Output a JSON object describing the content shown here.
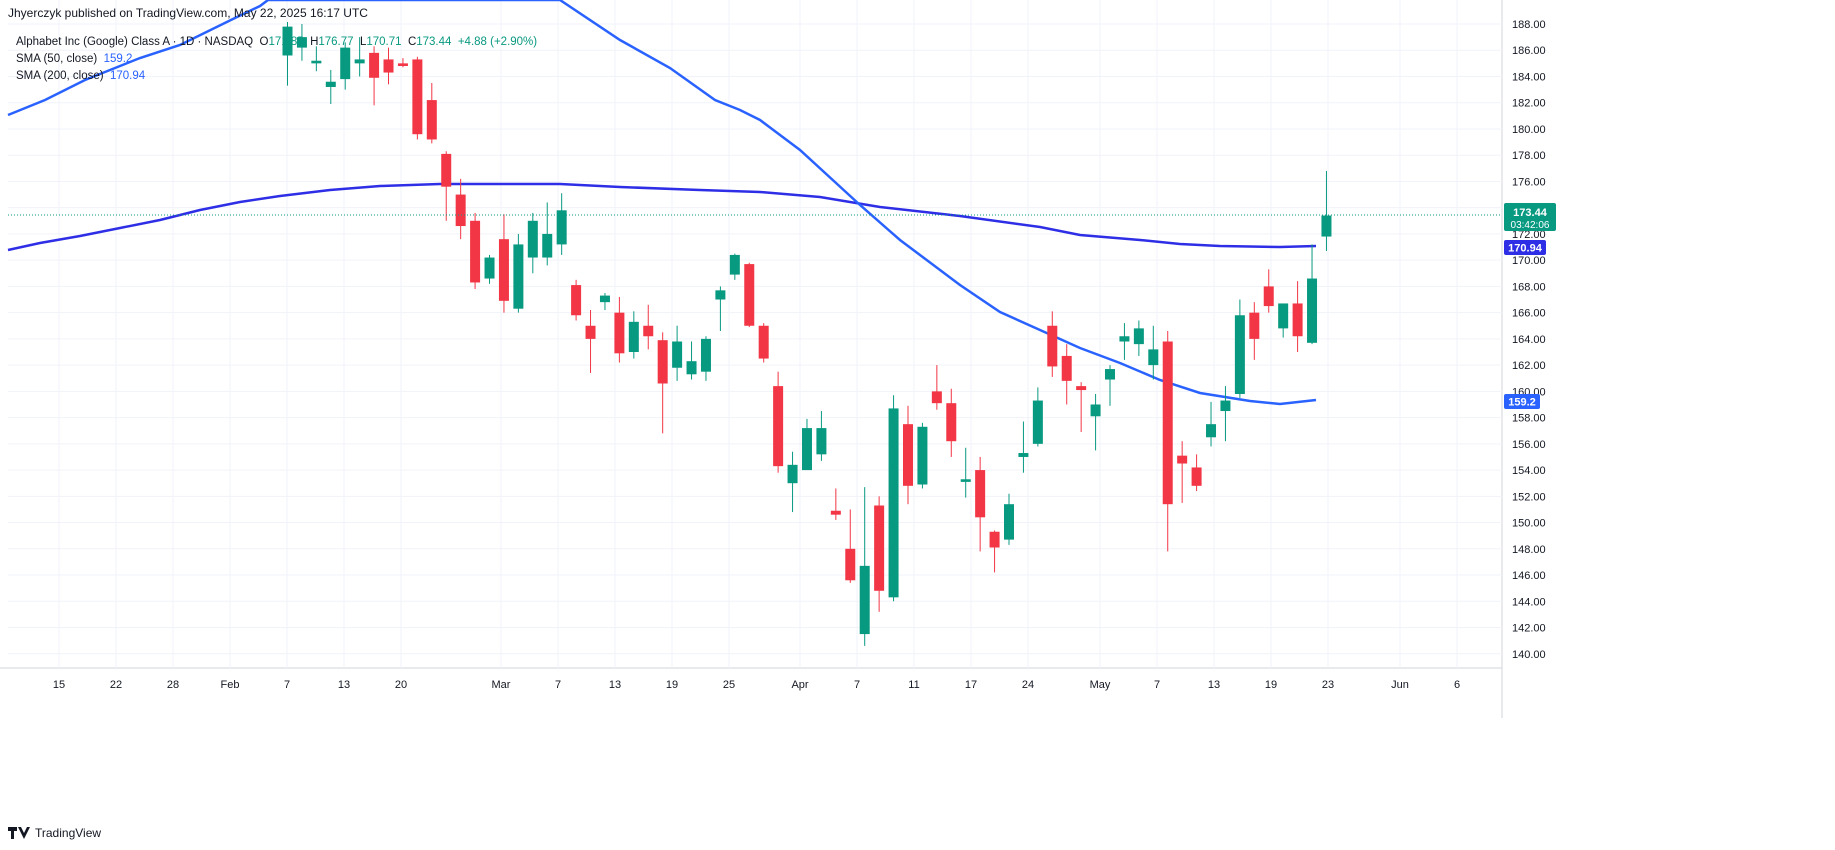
{
  "header": {
    "published": "Jhyerczyk published on TradingView.com, May 22, 2025 16:17 UTC"
  },
  "legend": {
    "symbol": "Alphabet Inc (Google) Class A · 1D · NASDAQ",
    "o_label": "O",
    "o_value": "171.85",
    "h_label": "H",
    "h_value": "176.77",
    "l_label": "L",
    "l_value": "170.71",
    "c_label": "C",
    "c_value": "173.44",
    "change": "+4.88 (+2.90%)",
    "sma50_label": "SMA (50, close)",
    "sma50_value": "159.2",
    "sma200_label": "SMA (200, close)",
    "sma200_value": "170.94"
  },
  "price_badge": {
    "price": "173.44",
    "countdown": "03:42:06"
  },
  "footer": {
    "brand": "TradingView"
  },
  "colors": {
    "up": "#089981",
    "down": "#f23645",
    "sma50": "#2962ff",
    "sma200": "#2e2ee6",
    "last_price_line": "#089981"
  },
  "chart_data": {
    "type": "candlestick",
    "y_axis": {
      "min": 140,
      "max": 188,
      "ticks": [
        140,
        142,
        144,
        146,
        148,
        150,
        152,
        154,
        156,
        158,
        160,
        162,
        164,
        166,
        168,
        170,
        172,
        174,
        176,
        178,
        180,
        182,
        184,
        186,
        188
      ],
      "side": "right"
    },
    "x_ticks": [
      "15",
      "22",
      "28",
      "Feb",
      "7",
      "13",
      "20",
      "Mar",
      "7",
      "13",
      "19",
      "25",
      "Apr",
      "7",
      "11",
      "17",
      "24",
      "May",
      "7",
      "13",
      "19",
      "23",
      "Jun",
      "6"
    ],
    "candles": [
      {
        "o": 185.6,
        "h": 188.2,
        "l": 183.3,
        "c": 187.8
      },
      {
        "o": 186.2,
        "h": 188.0,
        "l": 185.2,
        "c": 187.0
      },
      {
        "o": 185.0,
        "h": 186.3,
        "l": 184.4,
        "c": 185.2
      },
      {
        "o": 183.2,
        "h": 184.5,
        "l": 181.9,
        "c": 183.6
      },
      {
        "o": 183.8,
        "h": 186.6,
        "l": 183.0,
        "c": 186.2
      },
      {
        "o": 185.0,
        "h": 187.0,
        "l": 184.0,
        "c": 185.3
      },
      {
        "o": 185.8,
        "h": 186.3,
        "l": 181.8,
        "c": 183.9
      },
      {
        "o": 185.3,
        "h": 186.2,
        "l": 183.4,
        "c": 184.3
      },
      {
        "o": 185.0,
        "h": 185.4,
        "l": 184.7,
        "c": 184.8
      },
      {
        "o": 185.3,
        "h": 185.5,
        "l": 179.2,
        "c": 179.6
      },
      {
        "o": 182.2,
        "h": 183.5,
        "l": 178.9,
        "c": 179.2
      },
      {
        "o": 178.1,
        "h": 178.3,
        "l": 173.0,
        "c": 175.6
      },
      {
        "o": 175.0,
        "h": 176.2,
        "l": 171.6,
        "c": 172.6
      },
      {
        "o": 173.0,
        "h": 173.6,
        "l": 167.8,
        "c": 168.3
      },
      {
        "o": 168.6,
        "h": 170.4,
        "l": 168.2,
        "c": 170.2
      },
      {
        "o": 171.6,
        "h": 173.5,
        "l": 166.0,
        "c": 166.9
      },
      {
        "o": 166.3,
        "h": 172.0,
        "l": 166.0,
        "c": 171.2
      },
      {
        "o": 170.2,
        "h": 173.6,
        "l": 169.0,
        "c": 173.0
      },
      {
        "o": 170.2,
        "h": 174.4,
        "l": 169.6,
        "c": 172.0
      },
      {
        "o": 171.2,
        "h": 175.1,
        "l": 170.4,
        "c": 173.8
      },
      {
        "o": 168.1,
        "h": 168.5,
        "l": 165.4,
        "c": 165.8
      },
      {
        "o": 165.0,
        "h": 166.2,
        "l": 161.4,
        "c": 164.0
      },
      {
        "o": 166.8,
        "h": 167.5,
        "l": 166.2,
        "c": 167.3
      },
      {
        "o": 166.0,
        "h": 167.2,
        "l": 162.2,
        "c": 162.9
      },
      {
        "o": 163.0,
        "h": 166.1,
        "l": 162.5,
        "c": 165.3
      },
      {
        "o": 165.0,
        "h": 166.6,
        "l": 163.2,
        "c": 164.2
      },
      {
        "o": 163.9,
        "h": 164.5,
        "l": 156.8,
        "c": 160.6
      },
      {
        "o": 161.8,
        "h": 165.0,
        "l": 160.8,
        "c": 163.8
      },
      {
        "o": 161.3,
        "h": 163.8,
        "l": 160.9,
        "c": 162.3
      },
      {
        "o": 161.5,
        "h": 164.2,
        "l": 160.8,
        "c": 164.0
      },
      {
        "o": 167.0,
        "h": 168.0,
        "l": 164.6,
        "c": 167.7
      },
      {
        "o": 168.9,
        "h": 170.5,
        "l": 168.5,
        "c": 170.4
      },
      {
        "o": 169.7,
        "h": 169.8,
        "l": 164.9,
        "c": 165.0
      },
      {
        "o": 165.0,
        "h": 165.2,
        "l": 162.2,
        "c": 162.5
      },
      {
        "o": 160.4,
        "h": 161.5,
        "l": 153.8,
        "c": 154.3
      },
      {
        "o": 153.0,
        "h": 155.4,
        "l": 150.8,
        "c": 154.4
      },
      {
        "o": 154.0,
        "h": 157.9,
        "l": 154.3,
        "c": 157.2
      },
      {
        "o": 155.2,
        "h": 158.5,
        "l": 154.7,
        "c": 157.2
      },
      {
        "o": 150.9,
        "h": 152.6,
        "l": 150.2,
        "c": 150.6
      },
      {
        "o": 148.0,
        "h": 151.0,
        "l": 145.4,
        "c": 145.6
      },
      {
        "o": 141.5,
        "h": 152.7,
        "l": 140.6,
        "c": 146.7
      },
      {
        "o": 151.3,
        "h": 152.0,
        "l": 143.2,
        "c": 144.8
      },
      {
        "o": 144.3,
        "h": 159.7,
        "l": 144.0,
        "c": 158.7
      },
      {
        "o": 157.5,
        "h": 158.9,
        "l": 151.4,
        "c": 152.8
      },
      {
        "o": 152.9,
        "h": 157.6,
        "l": 152.6,
        "c": 157.3
      },
      {
        "o": 160.0,
        "h": 162.0,
        "l": 158.6,
        "c": 159.1
      },
      {
        "o": 159.1,
        "h": 160.2,
        "l": 155.0,
        "c": 156.2
      },
      {
        "o": 153.1,
        "h": 155.7,
        "l": 151.9,
        "c": 153.3
      },
      {
        "o": 154.0,
        "h": 155.0,
        "l": 147.8,
        "c": 150.4
      },
      {
        "o": 149.3,
        "h": 149.4,
        "l": 146.2,
        "c": 148.1
      },
      {
        "o": 148.7,
        "h": 152.2,
        "l": 148.3,
        "c": 151.4
      },
      {
        "o": 155.0,
        "h": 157.7,
        "l": 153.8,
        "c": 155.3
      },
      {
        "o": 156.0,
        "h": 160.3,
        "l": 155.8,
        "c": 159.3
      },
      {
        "o": 165.0,
        "h": 166.1,
        "l": 161.1,
        "c": 161.9
      },
      {
        "o": 162.7,
        "h": 163.6,
        "l": 159.0,
        "c": 160.8
      },
      {
        "o": 160.4,
        "h": 160.7,
        "l": 156.9,
        "c": 160.1
      },
      {
        "o": 158.1,
        "h": 159.8,
        "l": 155.5,
        "c": 159.0
      },
      {
        "o": 160.9,
        "h": 162.0,
        "l": 158.9,
        "c": 161.7
      },
      {
        "o": 163.8,
        "h": 165.2,
        "l": 162.4,
        "c": 164.2
      },
      {
        "o": 163.6,
        "h": 165.4,
        "l": 162.7,
        "c": 164.8
      },
      {
        "o": 162.0,
        "h": 165.0,
        "l": 160.9,
        "c": 163.2
      },
      {
        "o": 163.8,
        "h": 164.6,
        "l": 147.8,
        "c": 151.4
      },
      {
        "o": 155.1,
        "h": 156.2,
        "l": 151.5,
        "c": 154.5
      },
      {
        "o": 154.2,
        "h": 155.2,
        "l": 152.4,
        "c": 152.8
      },
      {
        "o": 156.5,
        "h": 159.2,
        "l": 155.8,
        "c": 157.5
      },
      {
        "o": 158.5,
        "h": 160.4,
        "l": 156.2,
        "c": 159.3
      },
      {
        "o": 159.8,
        "h": 167.0,
        "l": 159.5,
        "c": 165.8
      },
      {
        "o": 166.0,
        "h": 166.8,
        "l": 162.4,
        "c": 164.0
      },
      {
        "o": 168.0,
        "h": 169.3,
        "l": 166.0,
        "c": 166.5
      },
      {
        "o": 164.8,
        "h": 166.7,
        "l": 164.1,
        "c": 166.7
      },
      {
        "o": 166.7,
        "h": 168.4,
        "l": 163.0,
        "c": 164.2
      },
      {
        "o": 163.7,
        "h": 171.2,
        "l": 163.6,
        "c": 168.6
      },
      {
        "o": 171.8,
        "h": 176.8,
        "l": 170.7,
        "c": 173.4
      }
    ],
    "sma50": {
      "name": "SMA (50, close)",
      "value": 159.2
    },
    "sma200": {
      "name": "SMA (200, close)",
      "value": 170.94
    },
    "last_price": 173.44
  }
}
